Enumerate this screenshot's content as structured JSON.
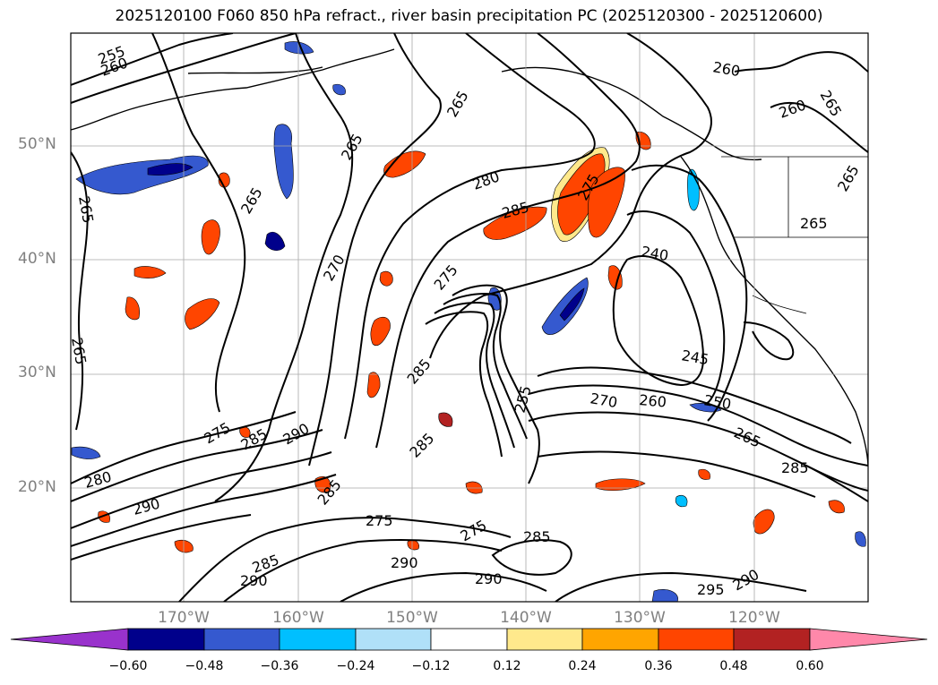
{
  "title": "2025120100 F060 850 hPa refract., river basin precipitation PC (2025120300 - 2025120600)",
  "latitude_labels": [
    "50°N",
    "40°N",
    "30°N",
    "20°N"
  ],
  "longitude_labels": [
    "170°W",
    "160°W",
    "150°W",
    "140°W",
    "130°W",
    "120°W"
  ],
  "contour_labels": [
    "255",
    "260",
    "265",
    "265",
    "265",
    "265",
    "265",
    "270",
    "275",
    "280",
    "285",
    "285",
    "285",
    "290",
    "290",
    "285",
    "275",
    "275",
    "285",
    "240",
    "245",
    "250",
    "255",
    "260",
    "265",
    "270",
    "275",
    "285",
    "295",
    "290",
    "260",
    "260",
    "265",
    "265",
    "265",
    "275",
    "290",
    "290",
    "285",
    "280",
    "285",
    "290"
  ],
  "colorbar": {
    "ticks": [
      "−0.60",
      "−0.48",
      "−0.36",
      "−0.24",
      "−0.12",
      "0.12",
      "0.24",
      "0.36",
      "0.48",
      "0.60"
    ],
    "colors": [
      "#9932cc",
      "#00008b",
      "#3559cf",
      "#00bfff",
      "#b0e0f8",
      "#ffffff",
      "#ffe98c",
      "#ffa500",
      "#ff4500",
      "#b22222",
      "#ff88aa"
    ]
  }
}
